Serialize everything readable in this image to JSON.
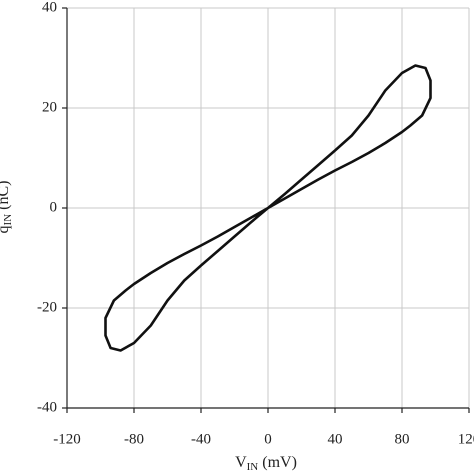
{
  "chart_data": {
    "type": "line",
    "xlabel": {
      "main": "V",
      "sub": "IN",
      "unit": "(mV)"
    },
    "ylabel": {
      "main": "q",
      "sub": "IN",
      "unit": "(nC)"
    },
    "color": "#111111",
    "grid": true,
    "xlim": [
      -120,
      120
    ],
    "xticks": [
      -120,
      -80,
      -40,
      0,
      40,
      80,
      120
    ],
    "ylim": [
      -40,
      40
    ],
    "yticks": [
      -40,
      -20,
      0,
      20,
      40
    ],
    "x": [
      0,
      10,
      20,
      30,
      40,
      50,
      60,
      70,
      80,
      88,
      94,
      97,
      97,
      92,
      85,
      80,
      70,
      60,
      50,
      40,
      30,
      20,
      10,
      0,
      -10,
      -20,
      -30,
      -40,
      -50,
      -60,
      -70,
      -80,
      -88,
      -94,
      -97,
      -97,
      -92,
      -85,
      -80,
      -70,
      -60,
      -50,
      -40,
      -30,
      -20,
      -10,
      0
    ],
    "values": [
      0,
      2.8,
      5.7,
      8.6,
      11.5,
      14.5,
      18.5,
      23.5,
      27,
      28.5,
      28,
      25.5,
      22,
      18.5,
      16.5,
      15.2,
      13,
      11,
      9.2,
      7.5,
      5.7,
      3.8,
      1.9,
      0,
      -2.8,
      -5.7,
      -8.6,
      -11.5,
      -14.5,
      -18.5,
      -23.5,
      -27,
      -28.5,
      -28,
      -25.5,
      -22,
      -18.5,
      -16.5,
      -15.2,
      -13,
      -11,
      -9.2,
      -7.5,
      -5.7,
      -3.8,
      -1.9,
      0
    ]
  }
}
